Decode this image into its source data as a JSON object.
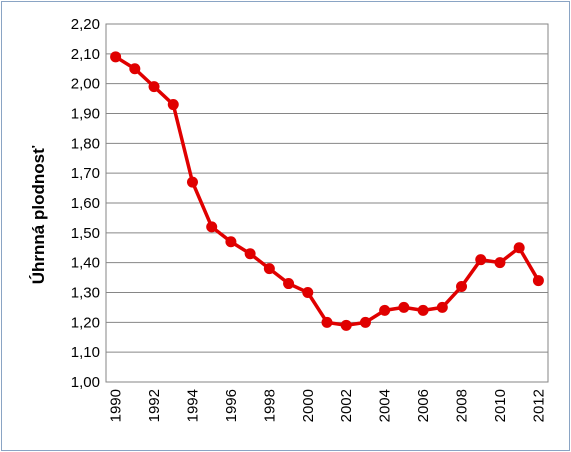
{
  "chart_data": {
    "type": "line",
    "title": "",
    "xlabel": "",
    "ylabel": "Úhrnná plodnosť",
    "x": [
      1990,
      1991,
      1992,
      1993,
      1994,
      1995,
      1996,
      1997,
      1998,
      1999,
      2000,
      2001,
      2002,
      2003,
      2004,
      2005,
      2006,
      2007,
      2008,
      2009,
      2010,
      2011,
      2012
    ],
    "series": [
      {
        "values": [
          2.09,
          2.05,
          1.99,
          1.93,
          1.67,
          1.52,
          1.47,
          1.43,
          1.38,
          1.33,
          1.3,
          1.2,
          1.19,
          1.2,
          1.24,
          1.25,
          1.24,
          1.25,
          1.32,
          1.41,
          1.4,
          1.45,
          1.34
        ],
        "color": "#e00000"
      }
    ],
    "ylim": [
      1.0,
      2.2
    ],
    "yticks": [
      "1,00",
      "1,10",
      "1,20",
      "1,30",
      "1,40",
      "1,50",
      "1,60",
      "1,70",
      "1,80",
      "1,90",
      "2,00",
      "2,10",
      "2,20"
    ],
    "xticks": [
      "1990",
      "1992",
      "1994",
      "1996",
      "1998",
      "2000",
      "2002",
      "2004",
      "2006",
      "2008",
      "2010",
      "2012"
    ],
    "grid": true,
    "legend": "none"
  }
}
